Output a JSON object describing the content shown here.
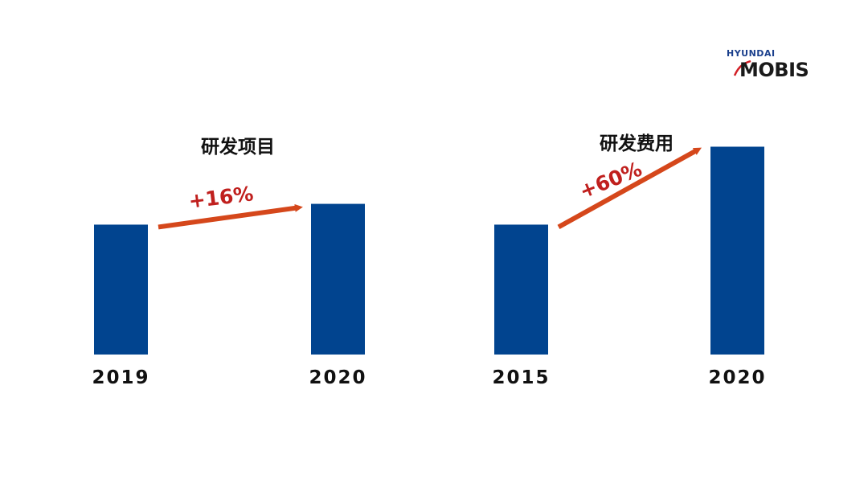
{
  "logo": {
    "brand": "HYUNDAI",
    "name": "MOBIS"
  },
  "colors": {
    "bar": "#01448f",
    "arrow": "#d5471b",
    "growth_label": "#c0201e",
    "text": "#111111"
  },
  "chart_data": [
    {
      "type": "bar",
      "title": "研发项目",
      "categories": [
        "2019",
        "2020"
      ],
      "values": [
        100,
        116
      ],
      "ylim": [
        0,
        190
      ],
      "annotation": "+16%",
      "grid": false
    },
    {
      "type": "bar",
      "title": "研发费用",
      "categories": [
        "2015",
        "2020"
      ],
      "values": [
        100,
        160
      ],
      "ylim": [
        0,
        190
      ],
      "annotation": "+60%",
      "grid": false
    }
  ]
}
